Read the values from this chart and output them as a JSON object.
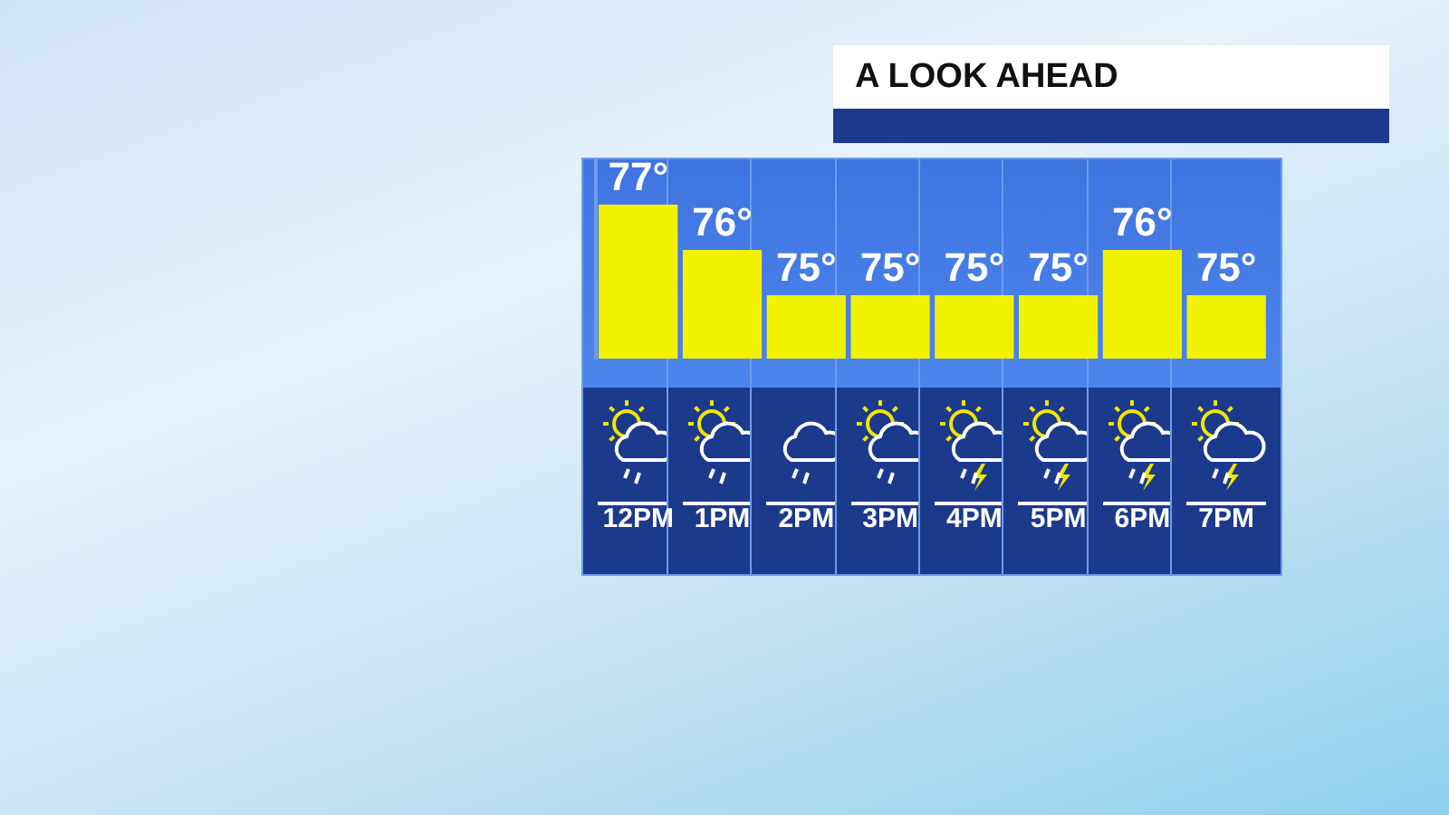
{
  "chart_data": {
    "type": "bar",
    "title": "A LOOK AHEAD",
    "categories": [
      "12PM",
      "1PM",
      "2PM",
      "3PM",
      "4PM",
      "5PM",
      "6PM",
      "7PM"
    ],
    "values": [
      77,
      76,
      75,
      75,
      75,
      75,
      76,
      75
    ],
    "value_labels": [
      "77°",
      "76°",
      "75°",
      "75°",
      "75°",
      "75°",
      "76°",
      "75°"
    ],
    "color": "#f2f200",
    "ylim": [
      73.6,
      78.0
    ],
    "tick_labels": "x",
    "grid": false,
    "legend": false
  }
}
